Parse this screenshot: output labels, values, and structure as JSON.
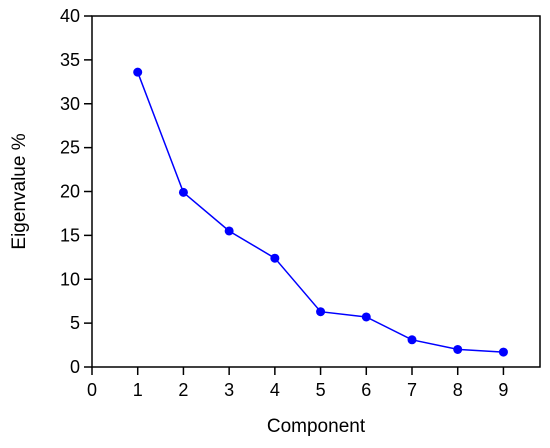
{
  "chart_data": {
    "type": "line",
    "title": "",
    "xlabel": "Component",
    "ylabel": "Eigenvalue %",
    "xlim": [
      0,
      9.8
    ],
    "ylim": [
      0,
      40
    ],
    "xticks": [
      0,
      1,
      2,
      3,
      4,
      5,
      6,
      7,
      8,
      9
    ],
    "yticks": [
      0,
      5,
      10,
      15,
      20,
      25,
      30,
      35,
      40
    ],
    "grid": false,
    "legend": "none",
    "series": [
      {
        "x": [
          1,
          2,
          3,
          4,
          5,
          6,
          7,
          8,
          9
        ],
        "values": [
          33.6,
          19.9,
          15.5,
          12.4,
          6.3,
          5.7,
          3.1,
          2.0,
          1.7
        ],
        "color": "#0000ff",
        "marker": "circle"
      }
    ]
  }
}
